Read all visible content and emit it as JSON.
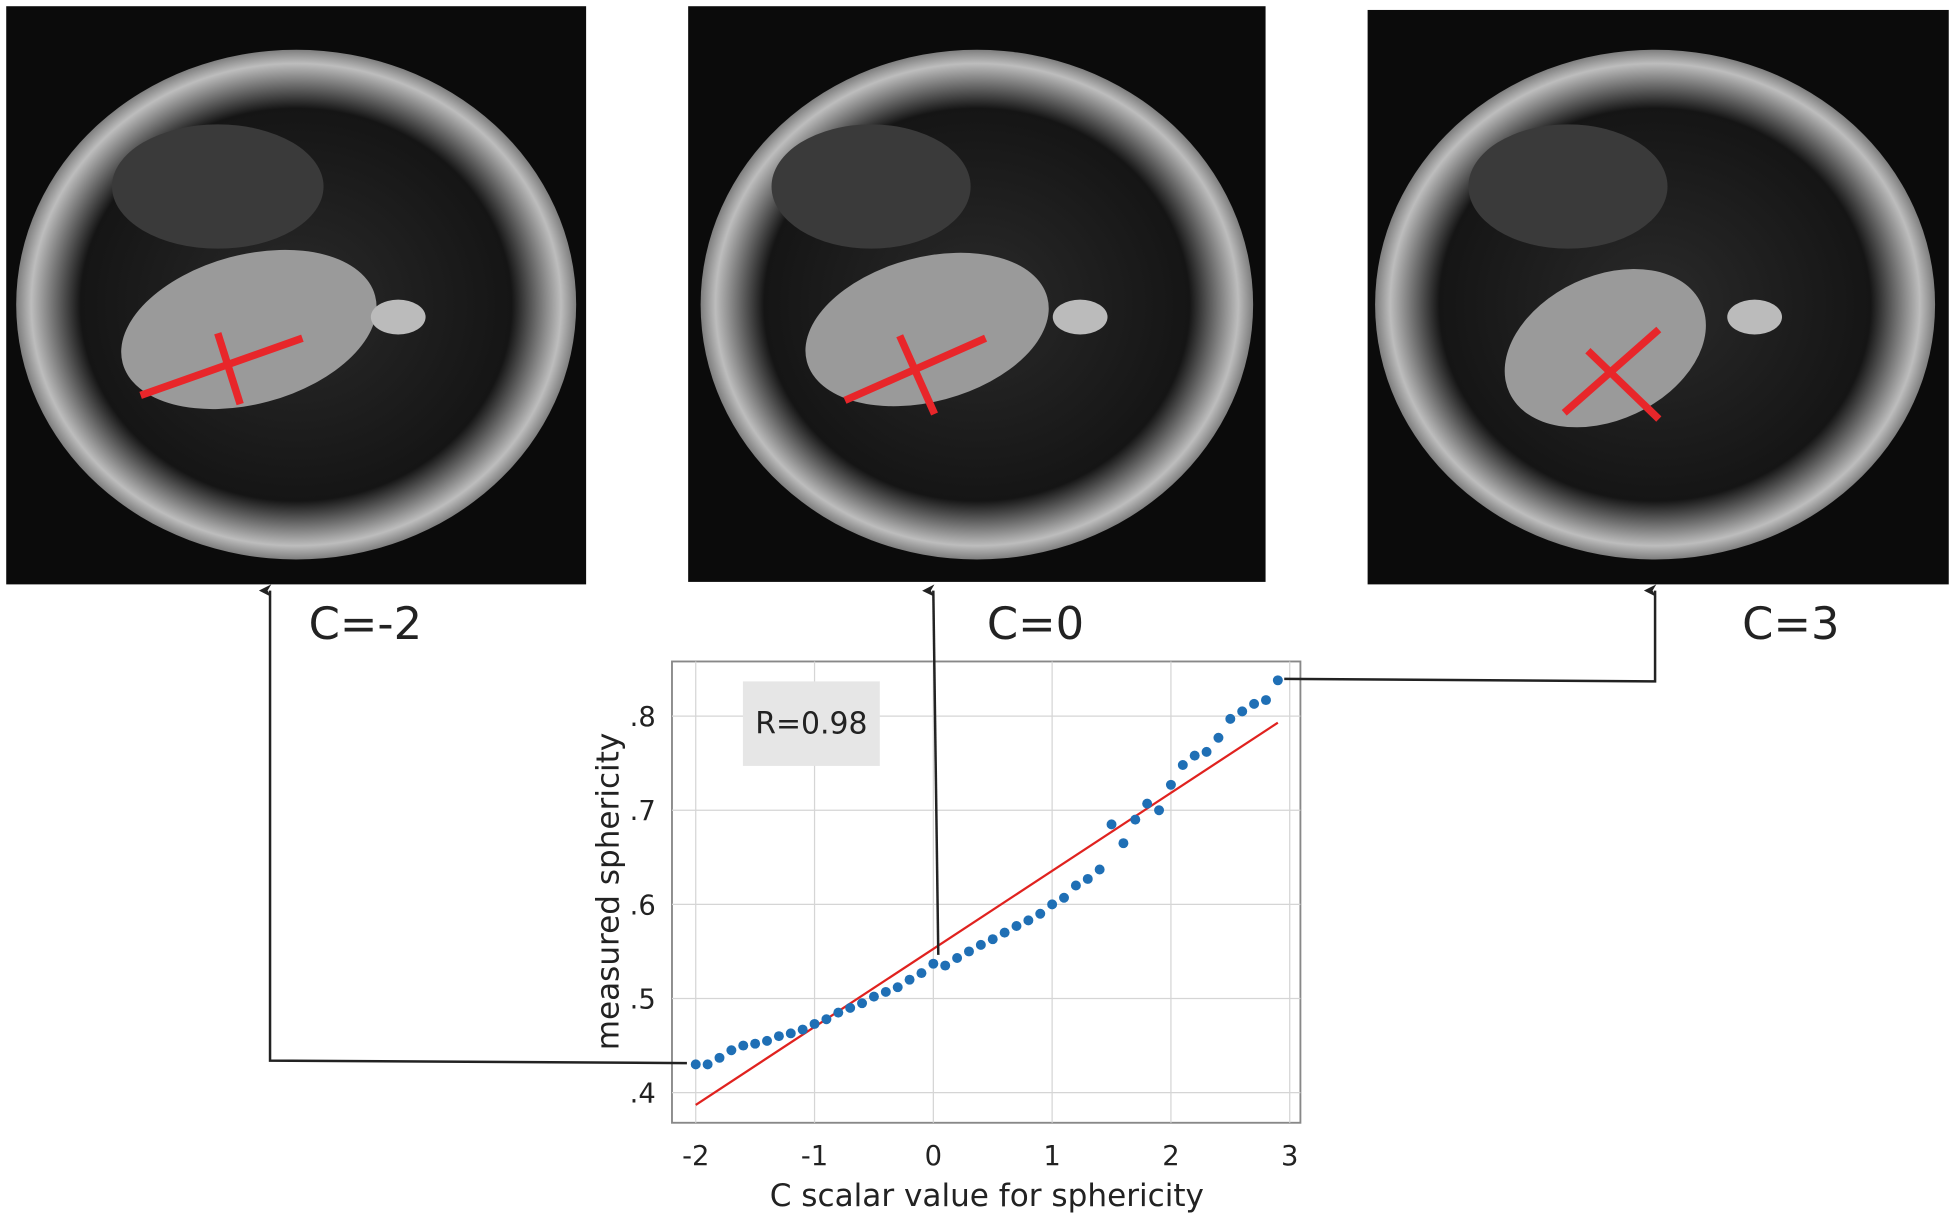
{
  "chart_data": {
    "type": "scatter",
    "x_label": "C scalar value for sphericity",
    "y_label": "measured sphericity",
    "annotation": "R=0.98",
    "panels": [
      "C=-2",
      "C=0",
      "C=3"
    ],
    "xlim": [
      -2.2,
      3.09
    ],
    "ylim": [
      0.368,
      0.858
    ],
    "xticks": [
      -2,
      -1,
      0,
      1,
      2,
      3
    ],
    "yticks": [
      {
        "value": 0.4,
        "label": ".4"
      },
      {
        "value": 0.5,
        "label": ".5"
      },
      {
        "value": 0.6,
        "label": ".6"
      },
      {
        "value": 0.7,
        "label": ".7"
      },
      {
        "value": 0.8,
        "label": ".8"
      }
    ],
    "grid": true,
    "color": "#1f6fb5",
    "x": [
      -2.0,
      -1.9,
      -1.8,
      -1.7,
      -1.6,
      -1.5,
      -1.4,
      -1.3,
      -1.2,
      -1.1,
      -1.0,
      -0.9,
      -0.8,
      -0.7,
      -0.6,
      -0.5,
      -0.4,
      -0.3,
      -0.2,
      -0.1,
      0.0,
      0.1,
      0.2,
      0.3,
      0.4,
      0.5,
      0.6,
      0.7,
      0.8,
      0.9,
      1.0,
      1.1,
      1.2,
      1.3,
      1.4,
      1.5,
      1.6,
      1.7,
      1.8,
      1.9,
      2.0,
      2.1,
      2.2,
      2.3,
      2.4,
      2.5,
      2.6,
      2.7,
      2.8,
      2.9
    ],
    "values": [
      0.43,
      0.43,
      0.437,
      0.445,
      0.45,
      0.452,
      0.455,
      0.46,
      0.463,
      0.467,
      0.473,
      0.478,
      0.485,
      0.49,
      0.495,
      0.502,
      0.507,
      0.512,
      0.52,
      0.527,
      0.537,
      0.535,
      0.543,
      0.55,
      0.557,
      0.563,
      0.57,
      0.577,
      0.583,
      0.59,
      0.6,
      0.607,
      0.62,
      0.627,
      0.637,
      0.685,
      0.665,
      0.69,
      0.707,
      0.7,
      0.727,
      0.748,
      0.758,
      0.762,
      0.777,
      0.797,
      0.805,
      0.813,
      0.817,
      0.838
    ],
    "fit": {
      "x": [
        -2.0,
        2.9
      ],
      "values": [
        0.387,
        0.793
      ],
      "color": "#e0221f"
    }
  }
}
